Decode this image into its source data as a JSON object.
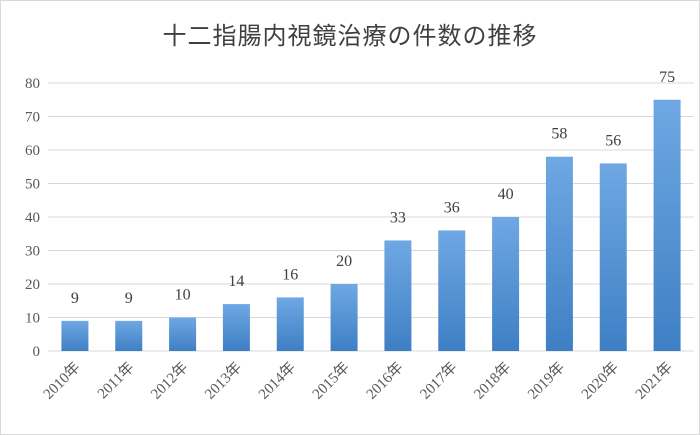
{
  "chart_data": {
    "type": "bar",
    "title": "十二指腸内視鏡治療の件数の推移",
    "xlabel": "",
    "ylabel": "",
    "categories": [
      "2010年",
      "2011年",
      "2012年",
      "2013年",
      "2014年",
      "2015年",
      "2016年",
      "2017年",
      "2018年",
      "2019年",
      "2020年",
      "2021年"
    ],
    "values": [
      9,
      9,
      10,
      14,
      16,
      20,
      33,
      36,
      40,
      58,
      56,
      75
    ],
    "ylim": [
      0,
      80
    ],
    "yticks": [
      0,
      10,
      20,
      30,
      40,
      50,
      60,
      70,
      80
    ],
    "grid": true,
    "legend": "none",
    "data_labels": true,
    "colors": {
      "bar_top": "#6fa8e3",
      "bar_bottom": "#3e7fc4",
      "grid": "#d9d9d9",
      "text": "#595959"
    }
  }
}
